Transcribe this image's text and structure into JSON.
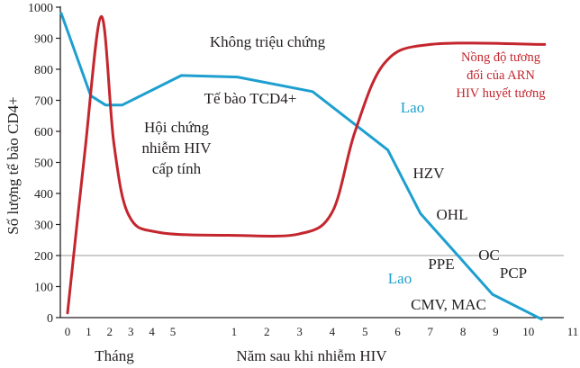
{
  "chart_data": {
    "type": "line",
    "title": "",
    "ylabel": "Số lượng tế bào CD4+",
    "xlabel_months": "Tháng",
    "xlabel_years": "Năm sau khi nhiễm HIV",
    "ylim": [
      0,
      1000
    ],
    "y_ticks": [
      "0",
      "100",
      "200",
      "300",
      "400",
      "500",
      "600",
      "700",
      "800",
      "900",
      "1000"
    ],
    "x_ticks_months": [
      "0",
      "1",
      "2",
      "3",
      "4",
      "5"
    ],
    "x_ticks_years": [
      "1",
      "2",
      "3",
      "4",
      "5",
      "6",
      "7",
      "8",
      "9",
      "10",
      "11"
    ],
    "reference_line": 200,
    "series": [
      {
        "name": "Tế bào TCD4+",
        "color": "#1e9fcf",
        "points": [
          {
            "unit": "month",
            "x": -0.3,
            "y": 980
          },
          {
            "unit": "month",
            "x": 1.1,
            "y": 715
          },
          {
            "unit": "month",
            "x": 1.8,
            "y": 685
          },
          {
            "unit": "month",
            "x": 2.6,
            "y": 685
          },
          {
            "unit": "month",
            "x": 5.4,
            "y": 780
          },
          {
            "unit": "year",
            "x": 1.1,
            "y": 775
          },
          {
            "unit": "year",
            "x": 3.4,
            "y": 728
          },
          {
            "unit": "year",
            "x": 5.7,
            "y": 540
          },
          {
            "unit": "year",
            "x": 6.7,
            "y": 335
          },
          {
            "unit": "year",
            "x": 8.9,
            "y": 75
          },
          {
            "unit": "year",
            "x": 10.4,
            "y": -5
          }
        ],
        "smooth": false
      },
      {
        "name": "Nồng độ tương đối của ARN HIV huyết tương",
        "color": "#c4262e",
        "points": [
          {
            "unit": "month",
            "x": 0,
            "y": 15
          },
          {
            "unit": "month",
            "x": 0.8,
            "y": 520
          },
          {
            "unit": "month",
            "x": 1.6,
            "y": 970
          },
          {
            "unit": "month",
            "x": 2.2,
            "y": 560
          },
          {
            "unit": "month",
            "x": 2.9,
            "y": 330
          },
          {
            "unit": "month",
            "x": 4.3,
            "y": 275
          },
          {
            "unit": "year",
            "x": 1,
            "y": 265
          },
          {
            "unit": "year",
            "x": 3,
            "y": 270
          },
          {
            "unit": "year",
            "x": 4,
            "y": 340
          },
          {
            "unit": "year",
            "x": 4.7,
            "y": 600
          },
          {
            "unit": "year",
            "x": 5.6,
            "y": 820
          },
          {
            "unit": "year",
            "x": 7,
            "y": 880
          },
          {
            "unit": "year",
            "x": 10.5,
            "y": 880
          }
        ],
        "smooth": true
      }
    ],
    "annotations": {
      "asymptomatic": "Không triệu chứng",
      "cd4_label": "Tế bào TCD4+",
      "acute_1": "Hội chứng",
      "acute_2": "nhiễm HIV",
      "acute_3": "cấp tính",
      "rna_1": "Nồng độ tương",
      "rna_2": "đối của ARN",
      "rna_3": "HIV huyết tương",
      "lao_upper": "Lao",
      "lao_lower": "Lao",
      "hzv": "HZV",
      "ohl": "OHL",
      "ppe": "PPE",
      "oc": "OC",
      "pcp": "PCP",
      "cmv_mac": "CMV, MAC"
    }
  }
}
